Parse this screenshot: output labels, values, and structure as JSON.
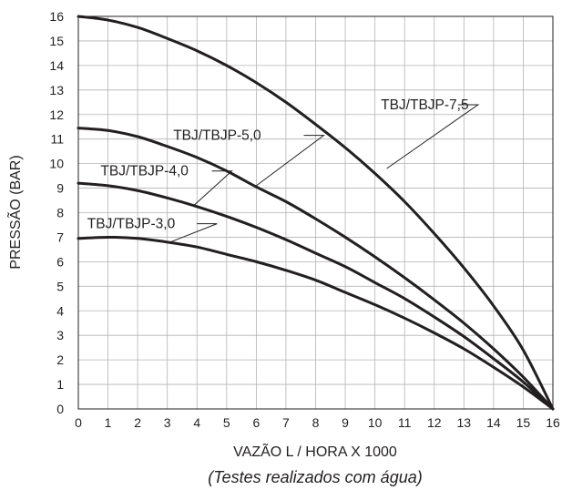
{
  "chart_data": {
    "type": "line",
    "xlabel": "VAZÃO L / HORA X 1000",
    "ylabel": "PRESSÃO (BAR)",
    "note": "(Testes realizados com água)",
    "xlim": [
      0,
      16
    ],
    "ylim": [
      0,
      16
    ],
    "x_ticks": [
      "0",
      "1",
      "2",
      "3",
      "4",
      "5",
      "6",
      "7",
      "8",
      "9",
      "10",
      "11",
      "12",
      "13",
      "14",
      "15",
      "16"
    ],
    "y_ticks": [
      "0",
      "1",
      "2",
      "3",
      "4",
      "5",
      "6",
      "7",
      "8",
      "9",
      "10",
      "11",
      "12",
      "13",
      "14",
      "15",
      "16"
    ],
    "grid": true,
    "series": [
      {
        "name": "TBJ/TBJP-7,5",
        "x": [
          0,
          1,
          2,
          3,
          4,
          5,
          6,
          7,
          8,
          9,
          10,
          11,
          12,
          13,
          14,
          15,
          16
        ],
        "y": [
          16.0,
          15.85,
          15.55,
          15.1,
          14.6,
          14.0,
          13.3,
          12.5,
          11.6,
          10.65,
          9.6,
          8.45,
          7.15,
          5.75,
          4.2,
          2.4,
          0
        ]
      },
      {
        "name": "TBJ/TBJP-5,0",
        "x": [
          0,
          1,
          2,
          3,
          4,
          5,
          6,
          7,
          8,
          9,
          10,
          11,
          12,
          13,
          14,
          15,
          16
        ],
        "y": [
          11.45,
          11.35,
          11.1,
          10.7,
          10.25,
          9.7,
          9.05,
          8.45,
          7.75,
          7.0,
          6.2,
          5.35,
          4.45,
          3.5,
          2.45,
          1.3,
          0
        ]
      },
      {
        "name": "TBJ/TBJP-4,0",
        "x": [
          0,
          1,
          2,
          3,
          4,
          5,
          6,
          7,
          8,
          9,
          10,
          11,
          12,
          13,
          14,
          15,
          16
        ],
        "y": [
          9.2,
          9.1,
          8.9,
          8.6,
          8.25,
          7.85,
          7.4,
          6.9,
          6.35,
          5.8,
          5.15,
          4.5,
          3.75,
          2.95,
          2.05,
          1.1,
          0
        ]
      },
      {
        "name": "TBJ/TBJP-3,0",
        "x": [
          0,
          1,
          2,
          3,
          4,
          5,
          6,
          7,
          8,
          9,
          10,
          11,
          12,
          13,
          14,
          15,
          16
        ],
        "y": [
          6.95,
          7.0,
          6.95,
          6.8,
          6.6,
          6.3,
          6.0,
          5.65,
          5.25,
          4.75,
          4.25,
          3.7,
          3.1,
          2.45,
          1.7,
          0.9,
          0
        ]
      }
    ],
    "labels": [
      {
        "text": "TBJ/TBJP-7,5",
        "series": 0,
        "at": [
          10.2,
          12.4
        ],
        "leader_to": [
          10.4,
          9.8
        ],
        "leader_from": [
          12.8,
          12.4
        ]
      },
      {
        "text": "TBJ/TBJP-5,0",
        "series": 1,
        "at": [
          3.2,
          11.15
        ],
        "leader_to": [
          6.0,
          9.1
        ],
        "leader_from": [
          7.6,
          11.15
        ]
      },
      {
        "text": "TBJ/TBJP-4,0",
        "series": 2,
        "at": [
          0.75,
          9.7
        ],
        "leader_to": [
          3.9,
          8.3
        ],
        "leader_from": [
          4.5,
          9.7
        ]
      },
      {
        "text": "TBJ/TBJP-3,0",
        "series": 3,
        "at": [
          0.3,
          7.55
        ],
        "leader_to": [
          3.1,
          6.8
        ],
        "leader_from": [
          4.0,
          7.55
        ]
      }
    ]
  }
}
